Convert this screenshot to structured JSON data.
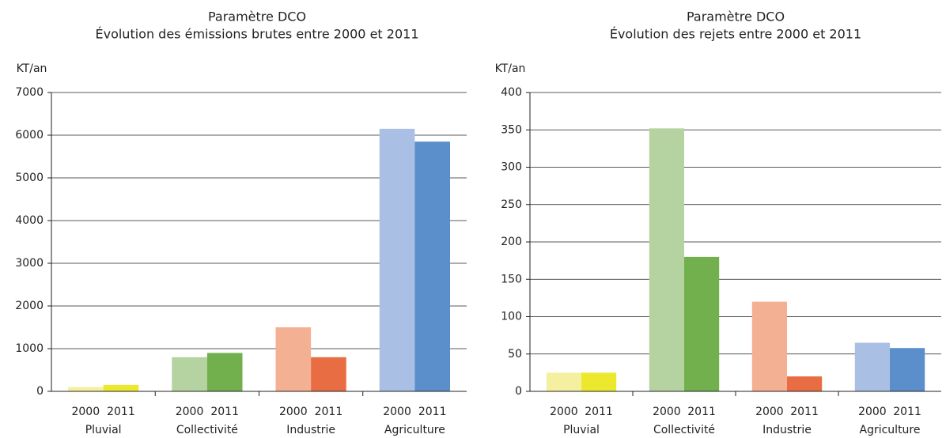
{
  "chart_data": [
    {
      "type": "bar",
      "title": [
        "Paramètre DCO",
        "Évolution des émissions brutes entre 2000 et 2011"
      ],
      "y_label": "KT/an",
      "categories": [
        "Pluvial",
        "Collectivité",
        "Industrie",
        "Agriculture"
      ],
      "series": [
        {
          "name": "2000",
          "colors": [
            "#f5f0a0",
            "#b5d3a0",
            "#f4b092",
            "#a9bfe4"
          ],
          "values": [
            100,
            800,
            1500,
            6150
          ]
        },
        {
          "name": "2011",
          "colors": [
            "#ece82e",
            "#72b04e",
            "#e86d43",
            "#5b8fcc"
          ],
          "values": [
            150,
            900,
            800,
            5850
          ]
        }
      ],
      "ylim": [
        0,
        7000
      ],
      "yticks": [
        0,
        1000,
        2000,
        3000,
        4000,
        5000,
        6000,
        7000
      ],
      "grid": true
    },
    {
      "type": "bar",
      "title": [
        "Paramètre DCO",
        "Évolution des rejets entre 2000 et 2011"
      ],
      "y_label": "KT/an",
      "categories": [
        "Pluvial",
        "Collectivité",
        "Industrie",
        "Agriculture"
      ],
      "series": [
        {
          "name": "2000",
          "colors": [
            "#f5f0a0",
            "#b5d3a0",
            "#f4b092",
            "#a9bfe4"
          ],
          "values": [
            25,
            352,
            120,
            65
          ]
        },
        {
          "name": "2011",
          "colors": [
            "#ece82e",
            "#72b04e",
            "#e86d43",
            "#5b8fcc"
          ],
          "values": [
            25,
            180,
            20,
            58
          ]
        }
      ],
      "ylim": [
        0,
        400
      ],
      "yticks": [
        0,
        50,
        100,
        150,
        200,
        250,
        300,
        350,
        400
      ],
      "grid": true
    }
  ]
}
